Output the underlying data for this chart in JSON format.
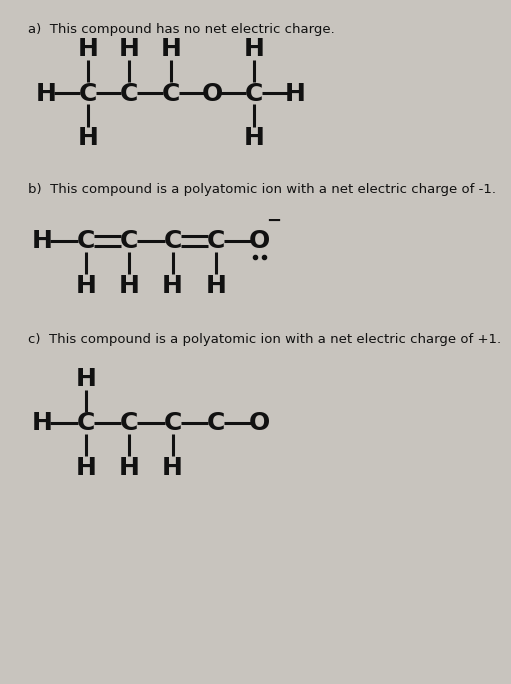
{
  "background_color": "#c8c4be",
  "title_a": "a)  This compound has no net electric charge.",
  "title_b": "b)  This compound is a polyatomic ion with a net electric charge of -1.",
  "title_c": "c)  This compound is a polyatomic ion with a net electric charge of +1.",
  "font_size_title": 9.5,
  "font_size_atom": 18,
  "text_color": "#111111",
  "bond_lw": 2.2
}
